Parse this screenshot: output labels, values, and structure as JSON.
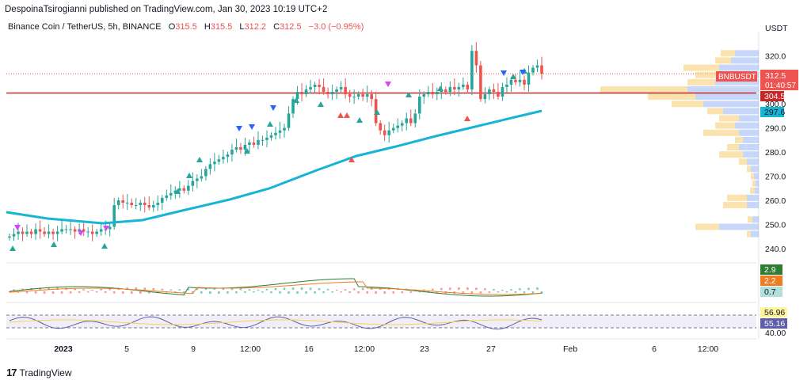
{
  "header": {
    "published": "DespoinaTsirogianni published on TradingView.com, Jan 30, 2023 10:19 UTC+2"
  },
  "legend": {
    "symbol": "Binance Coin / TetherUS, 5h, BINANCE",
    "open": "315.5",
    "high": "315.5",
    "low": "312.2",
    "close": "312.5",
    "change": "−3.0 (−0.95%)"
  },
  "price_axis": {
    "currency": "USDT",
    "ticks": [
      "320.0",
      "310.0",
      "300.0",
      "290.0",
      "280.0",
      "270.0",
      "260.0",
      "250.0",
      "240.0"
    ],
    "ticker_label": "BNBUSDT",
    "last_price": "312.5",
    "countdown": "01:40:57",
    "level_a": "304.5",
    "level_b": "297.6"
  },
  "time_axis": {
    "ticks": [
      "2023",
      "5",
      "9",
      "12:00",
      "16",
      "12:00",
      "23",
      "27",
      "Feb",
      "6",
      "12:00"
    ]
  },
  "macd": {
    "labels": [
      "2.9",
      "2.2",
      "0.7"
    ]
  },
  "rsi": {
    "labels": [
      "56.96",
      "55.16",
      "40.00"
    ],
    "bands": [
      60,
      40
    ]
  },
  "footer": {
    "brand": "TradingView"
  },
  "colors": {
    "up": "#26a69a",
    "down": "#ef5350",
    "ema": "#16b5d4",
    "hline": "#c62828",
    "vp_up": "#5b8def",
    "vp_down": "#f7c760",
    "macd": "#2e7d32",
    "signal": "#ef7c22",
    "rsi": "#5d5fa8"
  },
  "chart_data": {
    "type": "candlestick",
    "title": "Binance Coin / TetherUS, 5h, BINANCE",
    "ylabel": "USDT",
    "ylim": [
      236,
      328
    ],
    "close_series": [
      245,
      246,
      247,
      246,
      247,
      246,
      248,
      247,
      246,
      247,
      246,
      247,
      248,
      248,
      248,
      247,
      248,
      247,
      247,
      246,
      247,
      248,
      248,
      249,
      258,
      260,
      259,
      259,
      258,
      258,
      259,
      258,
      257,
      258,
      259,
      261,
      262,
      263,
      264,
      265,
      264,
      266,
      268,
      269,
      270,
      273,
      275,
      276,
      277,
      278,
      279,
      281,
      282,
      281,
      283,
      284,
      283,
      285,
      285,
      286,
      287,
      288,
      289,
      290,
      296,
      302,
      305,
      304,
      306,
      307,
      308,
      307,
      305,
      304,
      305,
      306,
      307,
      304,
      303,
      303,
      304,
      303,
      304,
      302,
      292,
      289,
      287,
      289,
      290,
      291,
      292,
      294,
      292,
      296,
      303,
      304,
      305,
      304,
      305,
      306,
      305,
      307,
      306,
      307,
      308,
      306,
      322,
      316,
      302,
      304,
      306,
      305,
      303,
      307,
      308,
      310,
      309,
      310,
      308,
      313,
      315,
      316,
      312.5
    ],
    "ema_series": [
      [
        0,
        256
      ],
      [
        40,
        253
      ],
      [
        100,
        251
      ],
      [
        140,
        253
      ],
      [
        200,
        260
      ],
      [
        280,
        275
      ],
      [
        360,
        292
      ],
      [
        430,
        298
      ],
      [
        490,
        306
      ],
      [
        560,
        314
      ],
      [
        620,
        322
      ],
      [
        680,
        298
      ]
    ],
    "hline": 304.5,
    "signals": {
      "buy_triangles": 9,
      "sell_triangles": 4,
      "buy_arrows": 7,
      "sell_arrows": 8
    },
    "volume_profile": "price-binned volume, up/down split, on right side",
    "macd": {
      "macd": 2.9,
      "signal": 2.2,
      "histogram": 0.7
    },
    "rsi": {
      "value": 56.96,
      "ma": 55.16,
      "lower_band": 40
    }
  }
}
